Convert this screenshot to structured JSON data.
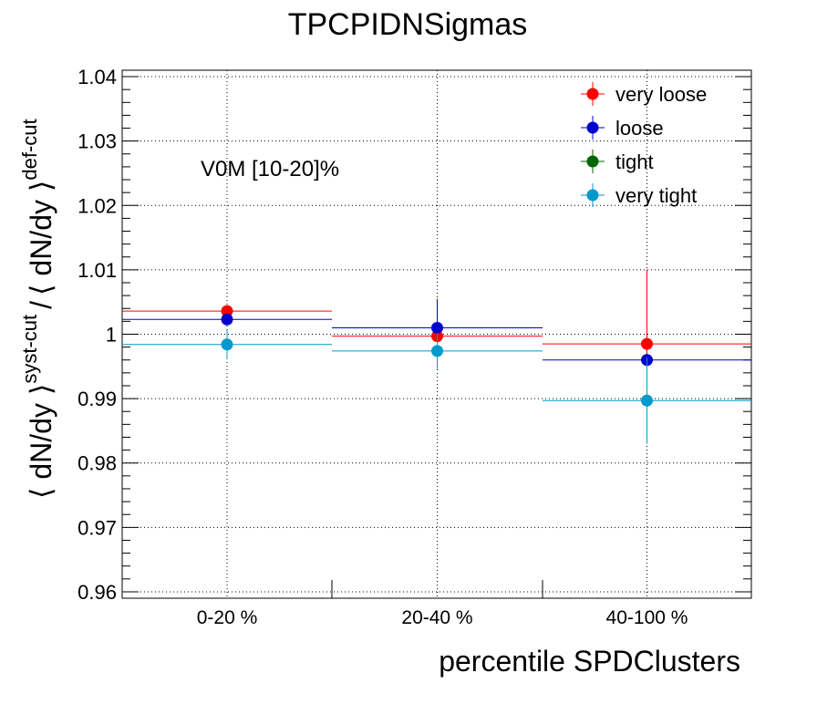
{
  "chart_data": {
    "type": "scatter",
    "title": "TPCPIDNSigmas",
    "xlabel": "percentile SPDClusters",
    "ylabel": {
      "main": "⟨ dN/dy ⟩",
      "sup": "syst-cut",
      "sep": "/",
      "main2": "⟨ dN/dy ⟩",
      "sup2": "def-cut"
    },
    "annotation": "V0M [10-20]%",
    "categories": [
      "0-20 %",
      "20-40 %",
      "40-100 %"
    ],
    "ylim": [
      0.959,
      1.041
    ],
    "yticks": [
      0.96,
      0.97,
      0.98,
      0.99,
      1,
      1.01,
      1.02,
      1.03,
      1.04
    ],
    "ytick_labels": [
      "0.96",
      "0.97",
      "0.98",
      "0.99",
      "1",
      "1.01",
      "1.02",
      "1.03",
      "1.04"
    ],
    "grid": true,
    "legend_position": "top-right",
    "series": [
      {
        "name": "very loose",
        "color": "#ff0000",
        "values": [
          1.0036,
          0.9997,
          0.9985
        ],
        "errors": [
          null,
          null,
          0.0115
        ]
      },
      {
        "name": "loose",
        "color": "#0000cc",
        "values": [
          1.0023,
          1.001,
          0.996
        ],
        "errors": [
          null,
          0.0045,
          null
        ]
      },
      {
        "name": "tight",
        "color": "#006600",
        "values": [
          null,
          null,
          null
        ],
        "errors": [
          null,
          null,
          null
        ]
      },
      {
        "name": "very tight",
        "color": "#0099cc",
        "values": [
          0.9984,
          0.9974,
          0.9897
        ],
        "errors": [
          0.0023,
          0.0028,
          0.0067
        ]
      }
    ]
  }
}
